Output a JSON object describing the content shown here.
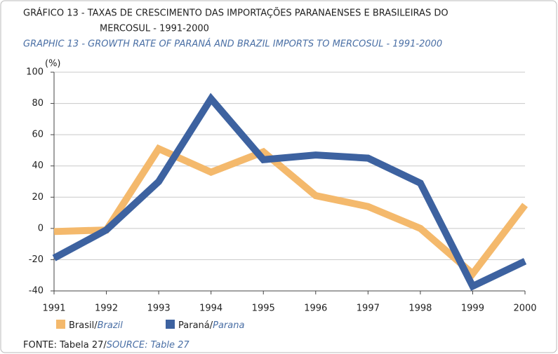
{
  "chart_data": {
    "type": "line",
    "title": [
      "GRÁFICO 13 - TAXAS DE CRESCIMENTO DAS IMPORTAÇÕES PARANAENSES E BRASILEIRAS DO",
      "MERCOSUL - 1991-2000"
    ],
    "subtitle": "GRAPHIC 13 - GROWTH RATE OF PARANÁ AND BRAZIL IMPORTS TO MERCOSUL - 1991-2000",
    "y_label": "(%)",
    "categories": [
      "1991",
      "1992",
      "1993",
      "1994",
      "1995",
      "1996",
      "1997",
      "1998",
      "1999",
      "2000"
    ],
    "series": [
      {
        "name": "Brasil/Brazil",
        "color": "#f4b96c",
        "values": [
          -2,
          -1,
          51,
          36,
          49,
          21,
          14,
          0,
          -29,
          15
        ]
      },
      {
        "name": "Paraná/Parana",
        "color": "#3d62a0",
        "values": [
          -19,
          -1,
          30,
          83,
          44,
          47,
          45,
          29,
          -37,
          -21
        ]
      }
    ],
    "ylim": [
      -40,
      100
    ],
    "yticks": [
      -40,
      -20,
      0,
      20,
      40,
      60,
      80,
      100
    ],
    "grid": true,
    "source": [
      "FONTE: Tabela 27/",
      "SOURCE: Table 27"
    ]
  }
}
